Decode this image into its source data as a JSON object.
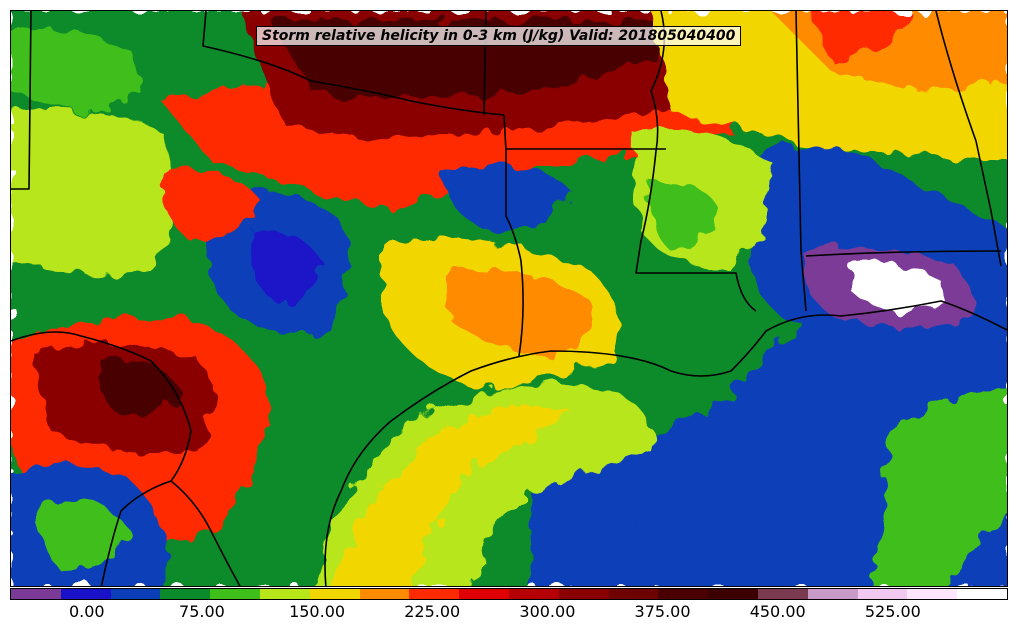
{
  "title": "Storm relative helicity in 0-3 km (J/kg) Valid: 201805040400",
  "colorbar": {
    "colors": [
      "#7b3a96",
      "#1a12c8",
      "#0b3fb8",
      "#0a8a2a",
      "#3fbf1a",
      "#b8e61a",
      "#f2d600",
      "#ff8c00",
      "#ff2a00",
      "#e00000",
      "#b40000",
      "#8a0000",
      "#6e0000",
      "#4a0000",
      "#3c0000",
      "#7a3a50",
      "#c89ac8",
      "#f0c8f0",
      "#ffe6ff",
      "#ffffff"
    ],
    "tick_labels": [
      "0.00",
      "75.00",
      "150.00",
      "225.00",
      "300.00",
      "375.00",
      "450.00",
      "525.00"
    ],
    "tick_values": [
      0,
      75,
      150,
      225,
      300,
      375,
      450,
      525
    ],
    "min": -50,
    "max": 600
  }
}
